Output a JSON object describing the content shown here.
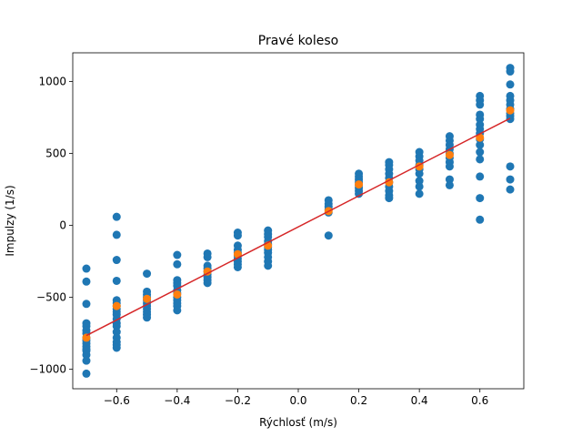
{
  "chart_data": {
    "type": "scatter",
    "title": "Pravé koleso",
    "xlabel": "Rýchlosť (m/s)",
    "ylabel": "Impulzy (1/s)",
    "xlim": [
      -0.745,
      0.745
    ],
    "ylim": [
      -1135,
      1200
    ],
    "grid": false,
    "x_ticks": [
      -0.6,
      -0.4,
      -0.2,
      0.0,
      0.2,
      0.4,
      0.6
    ],
    "x_tick_labels": [
      "−0.6",
      "−0.4",
      "−0.2",
      "0.0",
      "0.2",
      "0.4",
      "0.6"
    ],
    "y_ticks": [
      -1000,
      -500,
      0,
      500,
      1000
    ],
    "y_tick_labels": [
      "−1000",
      "−500",
      "0",
      "500",
      "1000"
    ],
    "colors": {
      "measured": "#1f77b4",
      "mean": "#ff7f0e",
      "fit": "#d62728"
    },
    "series": [
      {
        "kind": "scatter",
        "color": "#1f77b4",
        "points": [
          [
            -0.7,
            -300
          ],
          [
            -0.7,
            -390
          ],
          [
            -0.7,
            -545
          ],
          [
            -0.7,
            -680
          ],
          [
            -0.7,
            -700
          ],
          [
            -0.7,
            -730
          ],
          [
            -0.7,
            -750
          ],
          [
            -0.7,
            -780
          ],
          [
            -0.7,
            -800
          ],
          [
            -0.7,
            -820
          ],
          [
            -0.7,
            -840
          ],
          [
            -0.7,
            -860
          ],
          [
            -0.7,
            -870
          ],
          [
            -0.7,
            -900
          ],
          [
            -0.7,
            -940
          ],
          [
            -0.7,
            -1030
          ],
          [
            -0.6,
            60
          ],
          [
            -0.6,
            -65
          ],
          [
            -0.6,
            -240
          ],
          [
            -0.6,
            -385
          ],
          [
            -0.6,
            -520
          ],
          [
            -0.6,
            -540
          ],
          [
            -0.6,
            -560
          ],
          [
            -0.6,
            -580
          ],
          [
            -0.6,
            -600
          ],
          [
            -0.6,
            -620
          ],
          [
            -0.6,
            -650
          ],
          [
            -0.6,
            -680
          ],
          [
            -0.6,
            -700
          ],
          [
            -0.6,
            -740
          ],
          [
            -0.6,
            -780
          ],
          [
            -0.6,
            -810
          ],
          [
            -0.6,
            -830
          ],
          [
            -0.6,
            -850
          ],
          [
            -0.5,
            -335
          ],
          [
            -0.5,
            -460
          ],
          [
            -0.5,
            -480
          ],
          [
            -0.5,
            -500
          ],
          [
            -0.5,
            -520
          ],
          [
            -0.5,
            -540
          ],
          [
            -0.5,
            -560
          ],
          [
            -0.5,
            -580
          ],
          [
            -0.5,
            -600
          ],
          [
            -0.5,
            -620
          ],
          [
            -0.5,
            -640
          ],
          [
            -0.4,
            -205
          ],
          [
            -0.4,
            -270
          ],
          [
            -0.4,
            -380
          ],
          [
            -0.4,
            -400
          ],
          [
            -0.4,
            -420
          ],
          [
            -0.4,
            -450
          ],
          [
            -0.4,
            -470
          ],
          [
            -0.4,
            -500
          ],
          [
            -0.4,
            -520
          ],
          [
            -0.4,
            -540
          ],
          [
            -0.4,
            -560
          ],
          [
            -0.4,
            -590
          ],
          [
            -0.3,
            -195
          ],
          [
            -0.3,
            -220
          ],
          [
            -0.3,
            -280
          ],
          [
            -0.3,
            -300
          ],
          [
            -0.3,
            -320
          ],
          [
            -0.3,
            -340
          ],
          [
            -0.3,
            -360
          ],
          [
            -0.3,
            -380
          ],
          [
            -0.3,
            -400
          ],
          [
            -0.2,
            -50
          ],
          [
            -0.2,
            -70
          ],
          [
            -0.2,
            -140
          ],
          [
            -0.2,
            -170
          ],
          [
            -0.2,
            -190
          ],
          [
            -0.2,
            -210
          ],
          [
            -0.2,
            -230
          ],
          [
            -0.2,
            -250
          ],
          [
            -0.2,
            -270
          ],
          [
            -0.2,
            -290
          ],
          [
            -0.1,
            -35
          ],
          [
            -0.1,
            -60
          ],
          [
            -0.1,
            -80
          ],
          [
            -0.1,
            -110
          ],
          [
            -0.1,
            -130
          ],
          [
            -0.1,
            -150
          ],
          [
            -0.1,
            -170
          ],
          [
            -0.1,
            -190
          ],
          [
            -0.1,
            -220
          ],
          [
            -0.1,
            -250
          ],
          [
            -0.1,
            -280
          ],
          [
            0.1,
            175
          ],
          [
            0.1,
            150
          ],
          [
            0.1,
            130
          ],
          [
            0.1,
            110
          ],
          [
            0.1,
            90
          ],
          [
            0.1,
            -70
          ],
          [
            0.2,
            360
          ],
          [
            0.2,
            340
          ],
          [
            0.2,
            320
          ],
          [
            0.2,
            300
          ],
          [
            0.2,
            280
          ],
          [
            0.2,
            260
          ],
          [
            0.2,
            240
          ],
          [
            0.2,
            220
          ],
          [
            0.3,
            440
          ],
          [
            0.3,
            420
          ],
          [
            0.3,
            390
          ],
          [
            0.3,
            360
          ],
          [
            0.3,
            330
          ],
          [
            0.3,
            300
          ],
          [
            0.3,
            270
          ],
          [
            0.3,
            240
          ],
          [
            0.3,
            210
          ],
          [
            0.3,
            190
          ],
          [
            0.4,
            510
          ],
          [
            0.4,
            480
          ],
          [
            0.4,
            450
          ],
          [
            0.4,
            420
          ],
          [
            0.4,
            390
          ],
          [
            0.4,
            360
          ],
          [
            0.4,
            310
          ],
          [
            0.4,
            270
          ],
          [
            0.4,
            220
          ],
          [
            0.5,
            620
          ],
          [
            0.5,
            590
          ],
          [
            0.5,
            560
          ],
          [
            0.5,
            530
          ],
          [
            0.5,
            500
          ],
          [
            0.5,
            470
          ],
          [
            0.5,
            440
          ],
          [
            0.5,
            410
          ],
          [
            0.5,
            320
          ],
          [
            0.5,
            280
          ],
          [
            0.6,
            900
          ],
          [
            0.6,
            870
          ],
          [
            0.6,
            840
          ],
          [
            0.6,
            770
          ],
          [
            0.6,
            740
          ],
          [
            0.6,
            700
          ],
          [
            0.6,
            670
          ],
          [
            0.6,
            640
          ],
          [
            0.6,
            600
          ],
          [
            0.6,
            560
          ],
          [
            0.6,
            510
          ],
          [
            0.6,
            460
          ],
          [
            0.6,
            340
          ],
          [
            0.6,
            190
          ],
          [
            0.6,
            40
          ],
          [
            0.7,
            1095
          ],
          [
            0.7,
            1070
          ],
          [
            0.7,
            980
          ],
          [
            0.7,
            900
          ],
          [
            0.7,
            870
          ],
          [
            0.7,
            840
          ],
          [
            0.7,
            810
          ],
          [
            0.7,
            780
          ],
          [
            0.7,
            760
          ],
          [
            0.7,
            740
          ],
          [
            0.7,
            410
          ],
          [
            0.7,
            320
          ],
          [
            0.7,
            250
          ]
        ]
      },
      {
        "kind": "scatter",
        "color": "#ff7f0e",
        "points": [
          [
            -0.7,
            -780
          ],
          [
            -0.6,
            -560
          ],
          [
            -0.5,
            -510
          ],
          [
            -0.4,
            -480
          ],
          [
            -0.3,
            -320
          ],
          [
            -0.2,
            -200
          ],
          [
            -0.1,
            -140
          ],
          [
            0.1,
            100
          ],
          [
            0.2,
            285
          ],
          [
            0.3,
            300
          ],
          [
            0.4,
            410
          ],
          [
            0.5,
            490
          ],
          [
            0.6,
            610
          ],
          [
            0.7,
            800
          ]
        ]
      },
      {
        "kind": "line",
        "color": "#d62728",
        "points": [
          [
            -0.7,
            -765
          ],
          [
            0.7,
            745
          ]
        ]
      }
    ]
  }
}
